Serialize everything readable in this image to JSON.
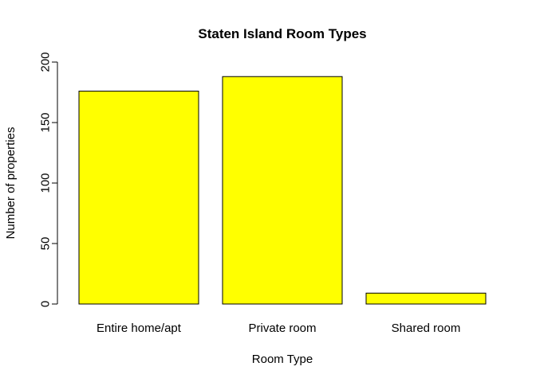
{
  "chart_data": {
    "type": "bar",
    "title": "Staten Island Room Types",
    "xlabel": "Room Type",
    "ylabel": "Number of properties",
    "categories": [
      "Entire home/apt",
      "Private room",
      "Shared room"
    ],
    "values": [
      176,
      188,
      9
    ],
    "ylim": [
      0,
      200
    ],
    "yticks": [
      0,
      50,
      100,
      150,
      200
    ],
    "bar_color": "#ffff00",
    "grid": false,
    "legend": "none"
  }
}
